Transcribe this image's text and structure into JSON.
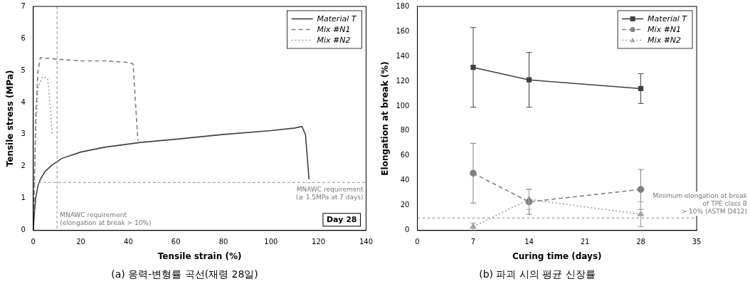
{
  "chart_data": [
    {
      "type": "line",
      "title": "(a) 응력-변형률 곡선(재령 28일)",
      "x_label": "Tensile strain (%)",
      "y_label": "Tensile stress (MPa)",
      "xlim": [
        0,
        140
      ],
      "xticks": [
        0,
        20,
        40,
        60,
        80,
        100,
        120,
        140
      ],
      "ylim": [
        0,
        7
      ],
      "yticks": [
        0,
        1,
        2,
        3,
        4,
        5,
        6,
        7
      ],
      "grid": false,
      "legend": "upper right",
      "series": [
        {
          "name": "Material T",
          "color": "#404040",
          "line_style": "solid",
          "marker": "none",
          "x": [
            0,
            0.5,
            1,
            2,
            3,
            5,
            8,
            12,
            20,
            30,
            45,
            60,
            80,
            100,
            110,
            113,
            114.5,
            116
          ],
          "values": [
            0,
            0.6,
            1.0,
            1.4,
            1.6,
            1.85,
            2.05,
            2.25,
            2.45,
            2.6,
            2.75,
            2.85,
            3.0,
            3.12,
            3.2,
            3.25,
            3.0,
            1.6
          ]
        },
        {
          "name": "Mix #N1",
          "color": "#808080",
          "line_style": "dashed",
          "marker": "none",
          "x": [
            0,
            0.5,
            1,
            2,
            3,
            10,
            20,
            30,
            40,
            42,
            43,
            44
          ],
          "values": [
            0,
            1.5,
            3.5,
            5.0,
            5.4,
            5.35,
            5.3,
            5.3,
            5.25,
            5.2,
            4.0,
            2.8
          ]
        },
        {
          "name": "Mix #N2",
          "color": "#a0a0a0",
          "line_style": "dotted",
          "marker": "none",
          "x": [
            0,
            0.5,
            1,
            2,
            4,
            6,
            7,
            8
          ],
          "values": [
            0,
            1.5,
            3.0,
            4.5,
            4.8,
            4.75,
            4.0,
            3.0
          ]
        }
      ],
      "reference_lines": [
        {
          "axis": "x",
          "value": 10,
          "label": [
            "MNAWC requirement",
            "(elongation at break > 10%)"
          ]
        },
        {
          "axis": "y",
          "value": 1.5,
          "label": [
            "MNAWC requirement",
            "(≥ 1.5MPa at 7 days)"
          ]
        }
      ],
      "annotations": [
        "Day 28"
      ]
    },
    {
      "type": "line",
      "title": "(b) 파괴 시의 평균 신장률",
      "x_label": "Curing time (days)",
      "y_label": "Elongation at break (%)",
      "xlim": [
        0,
        35
      ],
      "xticks": [
        0,
        7,
        14,
        21,
        28,
        35
      ],
      "ylim": [
        0,
        180
      ],
      "yticks": [
        0,
        20,
        40,
        60,
        80,
        100,
        120,
        140,
        160,
        180
      ],
      "grid": false,
      "legend": "upper right",
      "series": [
        {
          "name": "Material T",
          "color": "#404040",
          "line_style": "solid",
          "marker": "square",
          "x": [
            7,
            14,
            28
          ],
          "values": [
            131,
            121,
            114
          ],
          "errors": [
            32,
            22,
            12
          ]
        },
        {
          "name": "Mix #N1",
          "color": "#808080",
          "line_style": "dashed",
          "marker": "circle",
          "x": [
            7,
            14,
            28
          ],
          "values": [
            46,
            23,
            33
          ],
          "errors": [
            24,
            10,
            16
          ]
        },
        {
          "name": "Mix #N2",
          "color": "#a0a0a0",
          "line_style": "dotted",
          "marker": "triangle",
          "x": [
            7,
            14,
            28
          ],
          "values": [
            3,
            25,
            13
          ],
          "errors": [
            3,
            8,
            10
          ]
        }
      ],
      "reference_lines": [
        {
          "axis": "y",
          "value": 10,
          "label": [
            "Minimum elongation at break",
            "of TPE class B",
            "> 10% (ASTM D412)"
          ]
        }
      ]
    }
  ]
}
